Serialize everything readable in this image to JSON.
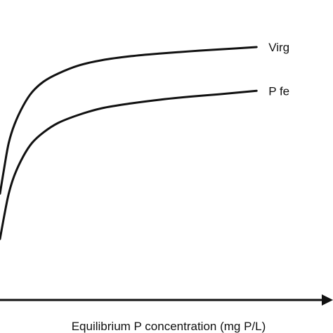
{
  "chart_data": {
    "type": "line",
    "title": "",
    "xlabel": "Equilibrium P concentration (mg P/L)",
    "ylabel": "",
    "grid": false,
    "legend": "inline labels at line ends",
    "ticks": "none",
    "xlim": [
      0,
      100
    ],
    "ylim": [
      0,
      100
    ],
    "series": [
      {
        "name": "Virg",
        "x": [
          0,
          1.5,
          3,
          5,
          8,
          11,
          15,
          20,
          27,
          35,
          45,
          55,
          65,
          75,
          88
        ],
        "y": [
          38,
          48,
          57,
          64,
          71,
          76,
          80,
          83,
          86,
          88,
          89.5,
          90.5,
          91.3,
          92,
          92.9
        ]
      },
      {
        "name": "P fe",
        "x": [
          0,
          1.5,
          3,
          5,
          8,
          11,
          15,
          20,
          27,
          35,
          45,
          55,
          65,
          75,
          88
        ],
        "y": [
          21,
          30,
          38,
          45,
          52,
          57,
          61,
          64.5,
          67.5,
          70,
          71.8,
          73.2,
          74.3,
          75.2,
          76.5
        ]
      }
    ]
  },
  "style": {
    "line_color": "#111111",
    "background": "#ffffff"
  }
}
